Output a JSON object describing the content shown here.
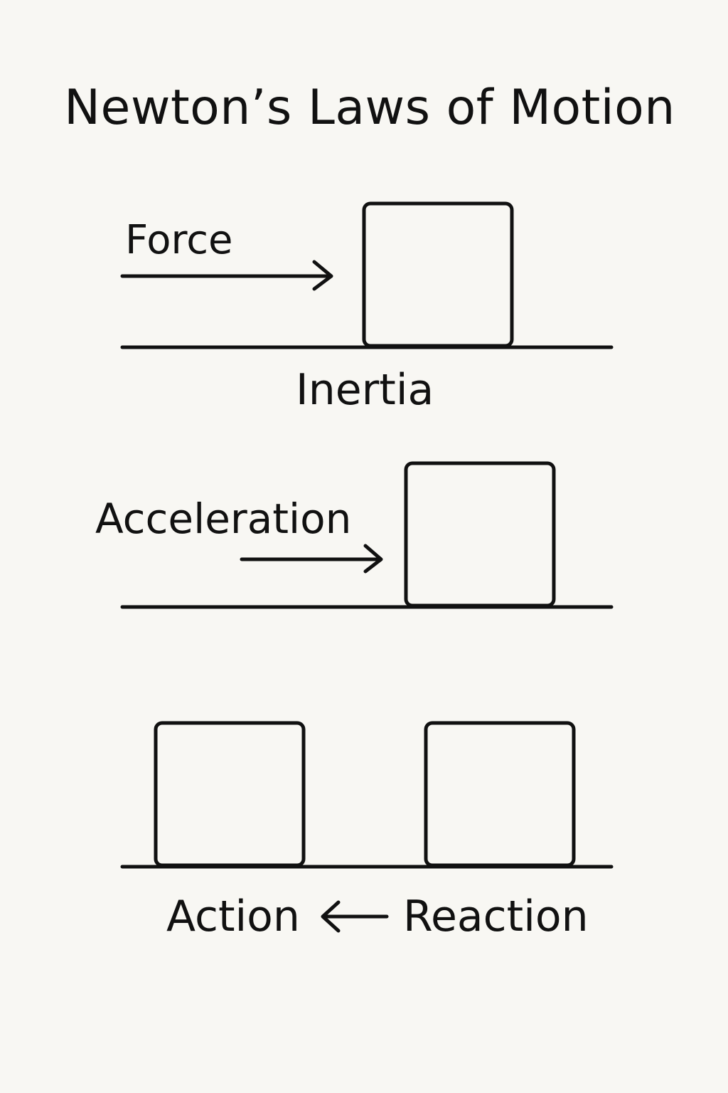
{
  "title": "Newton’s Laws of Motion",
  "labels": {
    "force": "Force",
    "inertia": "Inertia",
    "acceleration": "Acceleration",
    "action": "Action",
    "reaction": "Reaction"
  },
  "colors": {
    "background": "#f8f7f3",
    "ink": "#111111"
  }
}
